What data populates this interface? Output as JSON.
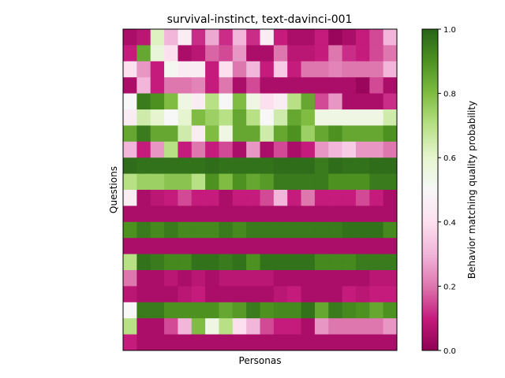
{
  "chart_data": {
    "type": "heatmap",
    "title": "survival-instinct, text-davinci-001",
    "xlabel": "Personas",
    "ylabel": "Questions",
    "colorbar": {
      "label": "Behavior matching quality probability",
      "range": [
        0,
        1
      ],
      "ticks": [
        "0.0",
        "0.2",
        "0.4",
        "0.6",
        "0.8",
        "1.0"
      ],
      "colormap": "PiYG"
    },
    "n_rows": 20,
    "n_cols": 20,
    "values": [
      [
        0.05,
        0.08,
        0.62,
        0.3,
        0.45,
        0.12,
        0.28,
        0.12,
        0.3,
        0.12,
        0.45,
        0.1,
        0.05,
        0.05,
        0.1,
        0.02,
        0.05,
        0.1,
        0.15,
        0.3
      ],
      [
        0.1,
        0.85,
        0.58,
        0.4,
        0.05,
        0.08,
        0.18,
        0.15,
        0.25,
        0.05,
        0.05,
        0.2,
        0.08,
        0.08,
        0.1,
        0.2,
        0.12,
        0.1,
        0.15,
        0.2
      ],
      [
        0.4,
        0.25,
        0.1,
        0.52,
        0.45,
        0.45,
        0.1,
        0.4,
        0.2,
        0.3,
        0.1,
        0.35,
        0.1,
        0.2,
        0.2,
        0.22,
        0.2,
        0.2,
        0.2,
        0.3
      ],
      [
        0.05,
        0.3,
        0.1,
        0.2,
        0.2,
        0.22,
        0.1,
        0.2,
        0.05,
        0.15,
        0.05,
        0.05,
        0.05,
        0.05,
        0.05,
        0.05,
        0.05,
        0.02,
        0.15,
        0.05
      ],
      [
        0.5,
        0.95,
        0.9,
        0.8,
        0.55,
        0.45,
        0.7,
        0.5,
        0.8,
        0.55,
        0.4,
        0.45,
        0.7,
        0.85,
        0.15,
        0.25,
        0.05,
        0.05,
        0.05,
        0.12
      ],
      [
        0.45,
        0.65,
        0.6,
        0.5,
        0.6,
        0.8,
        0.75,
        0.7,
        0.85,
        0.7,
        0.5,
        0.65,
        0.85,
        0.8,
        0.55,
        0.55,
        0.55,
        0.55,
        0.55,
        0.65
      ],
      [
        0.85,
        0.95,
        0.85,
        0.85,
        0.65,
        0.45,
        0.8,
        0.55,
        0.85,
        0.85,
        0.65,
        0.85,
        0.9,
        0.75,
        0.85,
        0.9,
        0.85,
        0.85,
        0.85,
        0.9
      ],
      [
        0.3,
        0.1,
        0.25,
        0.7,
        0.1,
        0.2,
        0.1,
        0.15,
        0.05,
        0.25,
        0.05,
        0.15,
        0.05,
        0.1,
        0.25,
        0.3,
        0.35,
        0.25,
        0.25,
        0.2
      ],
      [
        0.98,
        0.97,
        0.97,
        0.97,
        0.97,
        0.97,
        0.98,
        0.97,
        0.97,
        0.97,
        0.97,
        0.98,
        0.98,
        0.98,
        0.95,
        0.98,
        0.97,
        0.97,
        0.98,
        0.98
      ],
      [
        0.7,
        0.75,
        0.75,
        0.78,
        0.78,
        0.7,
        0.9,
        0.8,
        0.9,
        0.85,
        0.88,
        0.95,
        0.95,
        0.95,
        0.95,
        0.9,
        0.9,
        0.9,
        0.95,
        0.95
      ],
      [
        0.45,
        0.05,
        0.08,
        0.1,
        0.15,
        0.1,
        0.1,
        0.05,
        0.1,
        0.1,
        0.15,
        0.3,
        0.1,
        0.2,
        0.1,
        0.1,
        0.1,
        0.15,
        0.1,
        0.05
      ],
      [
        0.05,
        0.05,
        0.05,
        0.05,
        0.05,
        0.05,
        0.05,
        0.05,
        0.05,
        0.05,
        0.05,
        0.05,
        0.05,
        0.05,
        0.05,
        0.05,
        0.05,
        0.05,
        0.05,
        0.05
      ],
      [
        0.9,
        0.95,
        0.92,
        0.95,
        0.92,
        0.92,
        0.92,
        0.95,
        0.92,
        0.95,
        0.95,
        0.95,
        0.95,
        0.95,
        0.95,
        0.95,
        0.97,
        0.97,
        0.97,
        0.92
      ],
      [
        0.05,
        0.05,
        0.05,
        0.05,
        0.05,
        0.05,
        0.05,
        0.05,
        0.05,
        0.05,
        0.05,
        0.05,
        0.05,
        0.05,
        0.05,
        0.05,
        0.05,
        0.05,
        0.05,
        0.05
      ],
      [
        0.7,
        0.97,
        0.95,
        0.92,
        0.92,
        0.97,
        0.97,
        0.95,
        0.97,
        0.9,
        0.97,
        0.97,
        0.97,
        0.97,
        0.92,
        0.92,
        0.92,
        0.95,
        0.95,
        0.95
      ],
      [
        0.2,
        0.05,
        0.05,
        0.08,
        0.05,
        0.08,
        0.05,
        0.08,
        0.08,
        0.08,
        0.08,
        0.05,
        0.05,
        0.05,
        0.05,
        0.05,
        0.05,
        0.05,
        0.08,
        0.08
      ],
      [
        0.08,
        0.05,
        0.05,
        0.05,
        0.08,
        0.1,
        0.05,
        0.05,
        0.05,
        0.05,
        0.05,
        0.08,
        0.1,
        0.05,
        0.05,
        0.05,
        0.1,
        0.08,
        0.1,
        0.1
      ],
      [
        0.5,
        0.95,
        0.95,
        0.9,
        0.9,
        0.9,
        0.9,
        0.85,
        0.88,
        0.95,
        0.9,
        0.92,
        0.92,
        0.97,
        0.85,
        0.95,
        0.92,
        0.9,
        0.85,
        0.9
      ],
      [
        0.7,
        0.05,
        0.05,
        0.15,
        0.3,
        0.8,
        0.55,
        0.7,
        0.4,
        0.3,
        0.15,
        0.1,
        0.1,
        0.05,
        0.25,
        0.2,
        0.2,
        0.2,
        0.2,
        0.25
      ],
      [
        0.1,
        0.05,
        0.05,
        0.05,
        0.05,
        0.05,
        0.05,
        0.05,
        0.05,
        0.05,
        0.05,
        0.05,
        0.05,
        0.05,
        0.05,
        0.05,
        0.05,
        0.05,
        0.05,
        0.05
      ]
    ]
  }
}
